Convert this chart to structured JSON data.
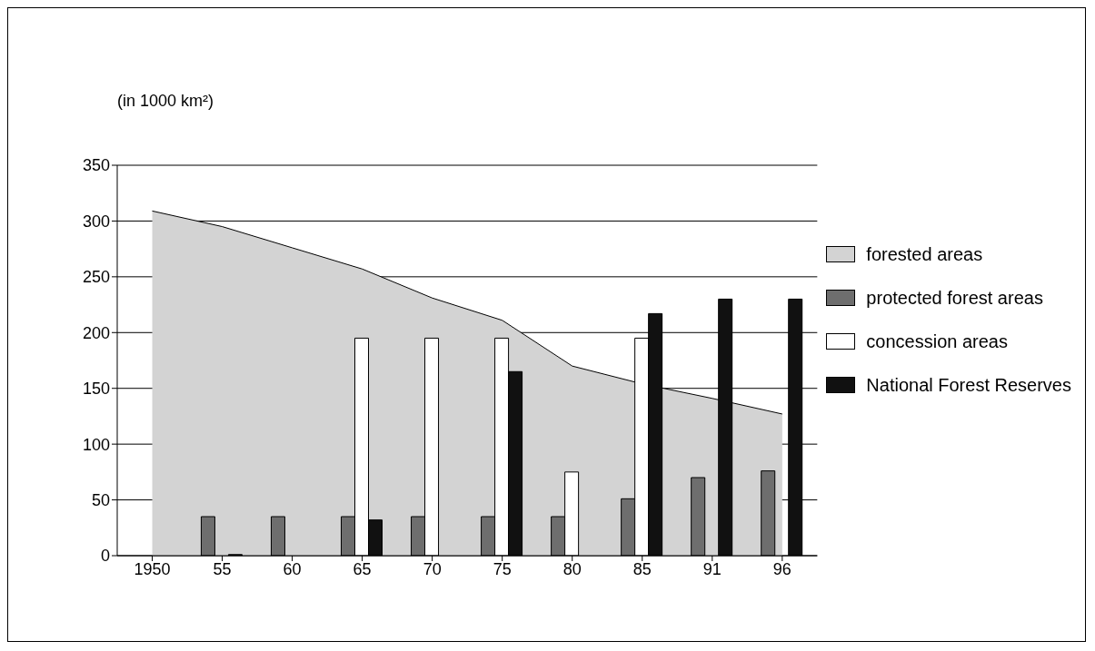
{
  "chart_data": {
    "type": "bar",
    "ylabel": "(in 1000 km²)",
    "categories": [
      "1950",
      "55",
      "60",
      "65",
      "70",
      "75",
      "80",
      "85",
      "91",
      "96"
    ],
    "series": [
      {
        "name": "forested areas",
        "type": "area",
        "color": "#d3d3d3",
        "values": [
          309,
          295,
          276,
          257,
          231,
          211,
          170,
          154,
          141,
          127
        ]
      },
      {
        "name": "protected forest areas",
        "color": "#6e6e6e",
        "values": [
          null,
          35,
          35,
          35,
          35,
          35,
          35,
          51,
          70,
          76
        ]
      },
      {
        "name": "concession areas",
        "color": "#ffffff",
        "values": [
          null,
          null,
          null,
          195,
          195,
          195,
          75,
          195,
          null,
          null
        ]
      },
      {
        "name": "National Forest Reserves",
        "color": "#111111",
        "values": [
          null,
          1,
          null,
          32,
          null,
          165,
          null,
          217,
          230,
          230
        ]
      }
    ],
    "ylim": [
      0,
      350
    ],
    "yticks": [
      0,
      50,
      100,
      150,
      200,
      250,
      300,
      350
    ],
    "grid": "y",
    "legend": "right"
  }
}
